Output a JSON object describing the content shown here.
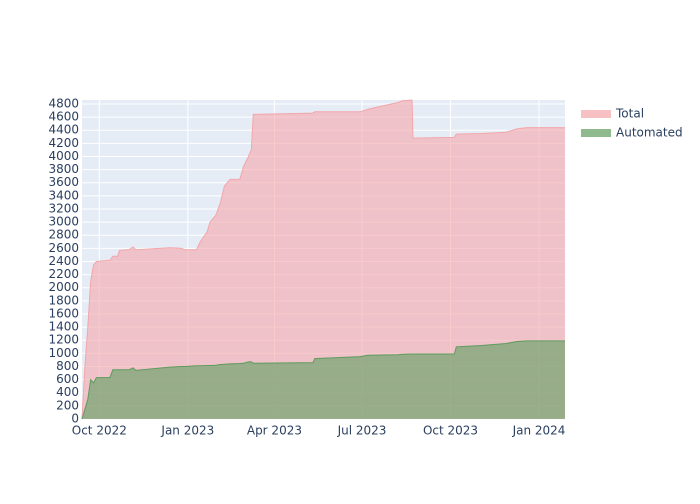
{
  "chart_data": {
    "type": "area",
    "x": [
      "2022-09-13",
      "2022-09-16",
      "2022-09-19",
      "2022-09-22",
      "2022-09-25",
      "2022-09-28",
      "2022-10-12",
      "2022-10-15",
      "2022-10-20",
      "2022-10-22",
      "2022-11-01",
      "2022-11-05",
      "2022-11-08",
      "2022-12-13",
      "2022-12-25",
      "2022-12-29",
      "2023-01-10",
      "2023-01-14",
      "2023-01-21",
      "2023-01-24",
      "2023-01-30",
      "2023-02-04",
      "2023-02-08",
      "2023-02-14",
      "2023-02-24",
      "2023-02-28",
      "2023-03-05",
      "2023-03-08",
      "2023-03-10",
      "2023-05-11",
      "2023-05-13",
      "2023-06-29",
      "2023-07-07",
      "2023-08-07",
      "2023-08-12",
      "2023-08-22",
      "2023-08-23",
      "2023-10-05",
      "2023-10-07",
      "2023-11-02",
      "2023-11-28",
      "2023-12-09",
      "2023-12-19",
      "2024-01-28"
    ],
    "series": [
      {
        "name": "Total",
        "color": "#f4a6aa",
        "values": [
          0,
          800,
          1400,
          2100,
          2350,
          2400,
          2420,
          2480,
          2480,
          2570,
          2580,
          2620,
          2580,
          2610,
          2600,
          2580,
          2580,
          2700,
          2850,
          3000,
          3100,
          3300,
          3550,
          3650,
          3650,
          3850,
          4000,
          4100,
          4640,
          4660,
          4680,
          4680,
          4720,
          4820,
          4850,
          4860,
          4280,
          4290,
          4340,
          4350,
          4370,
          4420,
          4440,
          4440
        ]
      },
      {
        "name": "Automated",
        "color": "#5e9c5e",
        "values": [
          0,
          150,
          300,
          600,
          550,
          630,
          630,
          750,
          750,
          750,
          750,
          780,
          740,
          790,
          800,
          800,
          810,
          810,
          815,
          815,
          820,
          830,
          835,
          840,
          845,
          850,
          870,
          870,
          850,
          860,
          920,
          950,
          970,
          980,
          985,
          990,
          990,
          990,
          1100,
          1120,
          1150,
          1180,
          1190,
          1190
        ]
      }
    ],
    "xlim": [
      "2022-09-13",
      "2024-01-28"
    ],
    "xticks": [
      {
        "value": "2022-10-01",
        "label": "Oct 2022"
      },
      {
        "value": "2023-01-01",
        "label": "Jan 2023"
      },
      {
        "value": "2023-04-01",
        "label": "Apr 2023"
      },
      {
        "value": "2023-07-01",
        "label": "Jul 2023"
      },
      {
        "value": "2023-10-01",
        "label": "Oct 2023"
      },
      {
        "value": "2024-01-01",
        "label": "Jan 2024"
      }
    ],
    "ylim": [
      0,
      4860
    ],
    "yticks": [
      0,
      200,
      400,
      600,
      800,
      1000,
      1200,
      1400,
      1600,
      1800,
      2000,
      2200,
      2400,
      2600,
      2800,
      3000,
      3200,
      3400,
      3600,
      3800,
      4000,
      4200,
      4400,
      4600,
      4800
    ],
    "grid": true
  }
}
